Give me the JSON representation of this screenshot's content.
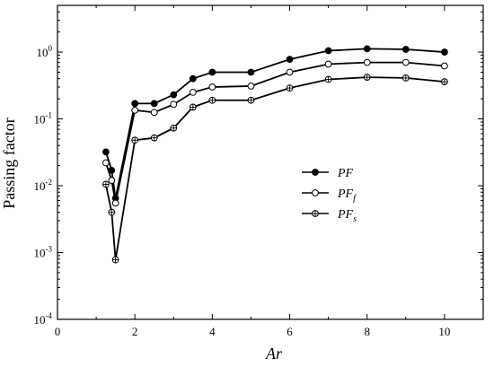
{
  "chart_data": {
    "type": "line",
    "xlabel": "Ar",
    "ylabel": "Passing factor",
    "xlim": [
      0,
      11
    ],
    "ylim": [
      0.0001,
      5
    ],
    "yscale": "log",
    "xticks": [
      0,
      2,
      4,
      6,
      8,
      10
    ],
    "xtick_labels": [
      "0",
      "2",
      "4",
      "6",
      "8",
      "10"
    ],
    "yticks": [
      0.0001,
      0.001,
      0.01,
      0.1,
      1
    ],
    "ytick_labels": [
      {
        "base": "10",
        "exp": "-4"
      },
      {
        "base": "10",
        "exp": "-3"
      },
      {
        "base": "10",
        "exp": "-2"
      },
      {
        "base": "10",
        "exp": "-1"
      },
      {
        "base": "10",
        "exp": "0"
      }
    ],
    "legend_position": "center-right",
    "series": [
      {
        "name": "PF",
        "legend_main": "PF",
        "legend_sub": "",
        "marker": "filled-circle",
        "x": [
          1.25,
          1.4,
          1.5,
          2,
          2.5,
          3,
          3.5,
          4,
          5,
          6,
          7,
          8,
          9,
          10
        ],
        "y": [
          0.032,
          0.017,
          0.0065,
          0.17,
          0.17,
          0.23,
          0.4,
          0.5,
          0.5,
          0.78,
          1.05,
          1.12,
          1.1,
          1.0
        ]
      },
      {
        "name": "PFf",
        "legend_main": "PF",
        "legend_sub": "f",
        "marker": "open-circle",
        "x": [
          1.25,
          1.4,
          1.5,
          2,
          2.5,
          3,
          3.5,
          4,
          5,
          6,
          7,
          8,
          9,
          10
        ],
        "y": [
          0.022,
          0.012,
          0.0055,
          0.135,
          0.125,
          0.165,
          0.25,
          0.3,
          0.31,
          0.5,
          0.66,
          0.7,
          0.7,
          0.62
        ]
      },
      {
        "name": "PFs",
        "legend_main": "PF",
        "legend_sub": "s",
        "marker": "circle-plus",
        "x": [
          1.25,
          1.4,
          1.5,
          2,
          2.5,
          3,
          3.5,
          4,
          5,
          6,
          7,
          8,
          9,
          10
        ],
        "y": [
          0.0105,
          0.004,
          0.00078,
          0.048,
          0.052,
          0.073,
          0.15,
          0.19,
          0.19,
          0.29,
          0.39,
          0.42,
          0.41,
          0.36
        ]
      }
    ]
  }
}
